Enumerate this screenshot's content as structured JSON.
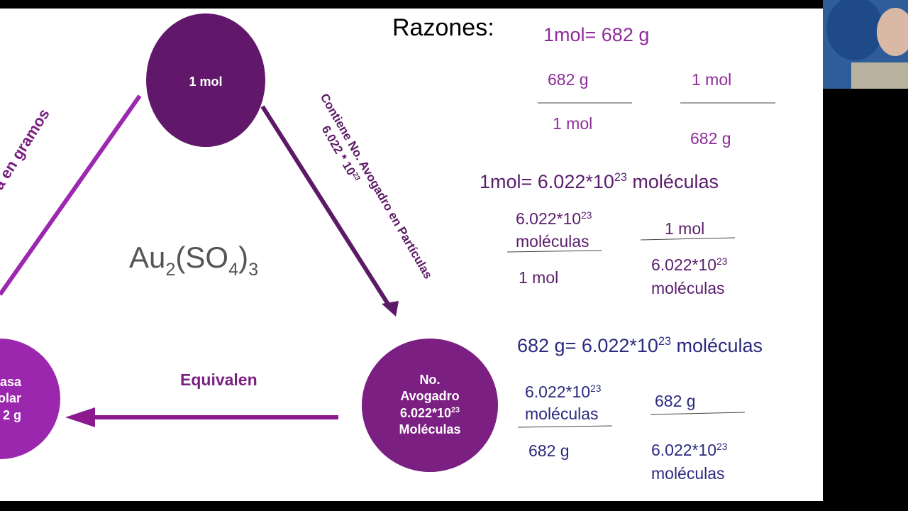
{
  "slide": {
    "title": "Razones:",
    "formula": {
      "parts": [
        "Au",
        "2",
        "(SO",
        "4",
        ")",
        "3"
      ]
    },
    "nodes": [
      {
        "label": "1 mol"
      },
      {
        "lines": [
          "asa",
          "olar",
          "2 g"
        ]
      },
      {
        "lines": [
          "No.",
          "Avogadro"
        ],
        "sci": {
          "base": "6.022*10",
          "exp": "23"
        },
        "last": "Moléculas"
      }
    ],
    "edges": [
      {
        "label": "sa en gramos"
      },
      {
        "label": "Contiene No. Avogadro en Partículas",
        "sci": {
          "base": "6.022 * 10",
          "exp": "23"
        }
      },
      {
        "label": "Equivalen"
      }
    ],
    "ratios": [
      {
        "heading": {
          "pre": "1mol= 682 g"
        },
        "fractions": [
          {
            "num": [
              "682 g"
            ],
            "den": [
              "1 mol"
            ]
          },
          {
            "num": [
              "1 mol"
            ],
            "den": [
              "682 g"
            ]
          }
        ]
      },
      {
        "heading": {
          "pre": "1mol= 6.022*10",
          "exp": "23",
          "post": " moléculas"
        },
        "fractions": [
          {
            "num": [
              {
                "base": "6.022*10",
                "exp": "23"
              },
              "moléculas"
            ],
            "den": [
              "1 mol"
            ]
          },
          {
            "num": [
              "1 mol"
            ],
            "den": [
              {
                "base": "6.022*10",
                "exp": "23"
              },
              "moléculas"
            ]
          }
        ]
      },
      {
        "heading": {
          "pre": "682 g= 6.022*10",
          "exp": "23",
          "post": " moléculas"
        },
        "fractions": [
          {
            "num": [
              {
                "base": "6.022*10",
                "exp": "23"
              },
              "moléculas"
            ],
            "den": [
              "682 g"
            ]
          },
          {
            "num": [
              "682 g"
            ],
            "den": [
              {
                "base": "6.022*10",
                "exp": "23"
              },
              "moléculas"
            ]
          }
        ]
      }
    ]
  }
}
